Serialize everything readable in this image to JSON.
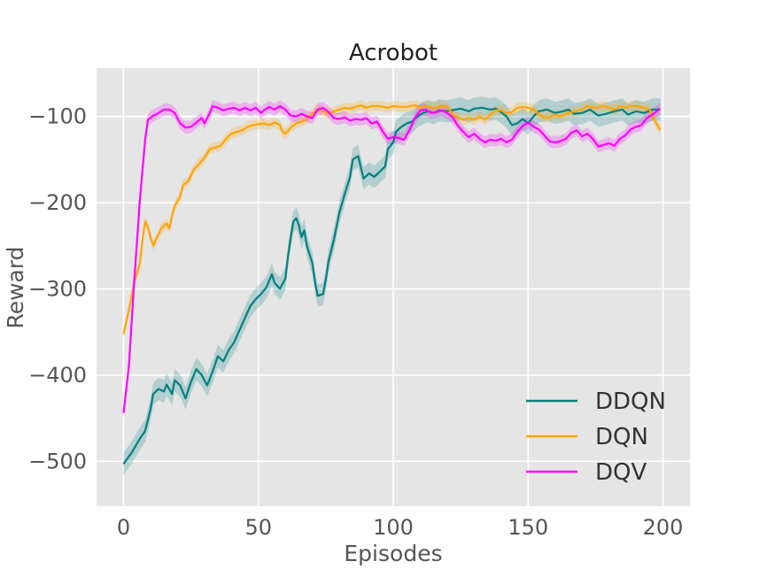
{
  "chart_data": {
    "type": "line",
    "title": "Acrobot",
    "xlabel": "Episodes",
    "ylabel": "Reward",
    "xlim": [
      -10,
      210
    ],
    "ylim": [
      -552,
      -44
    ],
    "xticks": [
      0,
      50,
      100,
      150,
      200
    ],
    "xtick_labels": [
      "0",
      "50",
      "100",
      "150",
      "200"
    ],
    "yticks": [
      -500,
      -400,
      -300,
      -200,
      -100
    ],
    "ytick_labels": [
      "−500",
      "−400",
      "−300",
      "−200",
      "−100"
    ],
    "grid": true,
    "legend_position": "bottom-right",
    "series": [
      {
        "name": "DDQN",
        "color": "#008080",
        "band": 13,
        "points": [
          [
            0,
            -503
          ],
          [
            3,
            -490
          ],
          [
            6,
            -474
          ],
          [
            8,
            -465
          ],
          [
            10,
            -440
          ],
          [
            11,
            -422
          ],
          [
            13,
            -416
          ],
          [
            15,
            -419
          ],
          [
            16,
            -411
          ],
          [
            18,
            -422
          ],
          [
            19,
            -406
          ],
          [
            21,
            -412
          ],
          [
            23,
            -427
          ],
          [
            25,
            -408
          ],
          [
            27,
            -393
          ],
          [
            29,
            -400
          ],
          [
            31,
            -412
          ],
          [
            33,
            -396
          ],
          [
            35,
            -378
          ],
          [
            37,
            -384
          ],
          [
            39,
            -371
          ],
          [
            41,
            -362
          ],
          [
            43,
            -348
          ],
          [
            45,
            -334
          ],
          [
            47,
            -320
          ],
          [
            49,
            -312
          ],
          [
            51,
            -306
          ],
          [
            53,
            -298
          ],
          [
            55,
            -283
          ],
          [
            56,
            -293
          ],
          [
            58,
            -300
          ],
          [
            60,
            -288
          ],
          [
            61,
            -262
          ],
          [
            62,
            -240
          ],
          [
            63,
            -222
          ],
          [
            64,
            -218
          ],
          [
            65,
            -226
          ],
          [
            66,
            -240
          ],
          [
            67,
            -232
          ],
          [
            68,
            -250
          ],
          [
            70,
            -270
          ],
          [
            71,
            -292
          ],
          [
            72,
            -308
          ],
          [
            74,
            -306
          ],
          [
            75,
            -289
          ],
          [
            76,
            -268
          ],
          [
            78,
            -243
          ],
          [
            80,
            -212
          ],
          [
            82,
            -190
          ],
          [
            84,
            -170
          ],
          [
            85,
            -150
          ],
          [
            87,
            -146
          ],
          [
            89,
            -172
          ],
          [
            91,
            -166
          ],
          [
            93,
            -170
          ],
          [
            95,
            -164
          ],
          [
            97,
            -158
          ],
          [
            98,
            -138
          ],
          [
            100,
            -130
          ],
          [
            101,
            -118
          ],
          [
            103,
            -112
          ],
          [
            105,
            -108
          ],
          [
            107,
            -106
          ],
          [
            109,
            -100
          ],
          [
            111,
            -96
          ],
          [
            113,
            -94
          ],
          [
            115,
            -96
          ],
          [
            117,
            -93
          ],
          [
            120,
            -94
          ],
          [
            123,
            -92
          ],
          [
            125,
            -91
          ],
          [
            128,
            -94
          ],
          [
            130,
            -91
          ],
          [
            133,
            -90
          ],
          [
            136,
            -92
          ],
          [
            138,
            -91
          ],
          [
            140,
            -95
          ],
          [
            142,
            -100
          ],
          [
            144,
            -110
          ],
          [
            146,
            -108
          ],
          [
            148,
            -103
          ],
          [
            150,
            -108
          ],
          [
            152,
            -100
          ],
          [
            154,
            -94
          ],
          [
            157,
            -92
          ],
          [
            160,
            -96
          ],
          [
            163,
            -94
          ],
          [
            165,
            -92
          ],
          [
            167,
            -97
          ],
          [
            170,
            -96
          ],
          [
            173,
            -92
          ],
          [
            176,
            -99
          ],
          [
            179,
            -97
          ],
          [
            182,
            -94
          ],
          [
            185,
            -92
          ],
          [
            187,
            -98
          ],
          [
            190,
            -94
          ],
          [
            193,
            -96
          ],
          [
            196,
            -92
          ],
          [
            199,
            -92
          ]
        ]
      },
      {
        "name": "DQN",
        "color": "#FFA500",
        "band": 6,
        "points": [
          [
            0,
            -352
          ],
          [
            2,
            -325
          ],
          [
            4,
            -292
          ],
          [
            6,
            -272
          ],
          [
            7,
            -245
          ],
          [
            8,
            -222
          ],
          [
            9,
            -228
          ],
          [
            10,
            -240
          ],
          [
            11,
            -250
          ],
          [
            12,
            -243
          ],
          [
            14,
            -230
          ],
          [
            16,
            -224
          ],
          [
            17,
            -230
          ],
          [
            18,
            -215
          ],
          [
            19,
            -204
          ],
          [
            21,
            -193
          ],
          [
            22,
            -180
          ],
          [
            24,
            -175
          ],
          [
            26,
            -162
          ],
          [
            28,
            -155
          ],
          [
            30,
            -148
          ],
          [
            32,
            -138
          ],
          [
            34,
            -136
          ],
          [
            36,
            -134
          ],
          [
            38,
            -126
          ],
          [
            40,
            -120
          ],
          [
            42,
            -118
          ],
          [
            44,
            -116
          ],
          [
            46,
            -112
          ],
          [
            48,
            -110
          ],
          [
            50,
            -109
          ],
          [
            52,
            -108
          ],
          [
            54,
            -110
          ],
          [
            56,
            -107
          ],
          [
            58,
            -110
          ],
          [
            59,
            -118
          ],
          [
            60,
            -120
          ],
          [
            62,
            -113
          ],
          [
            64,
            -108
          ],
          [
            66,
            -106
          ],
          [
            68,
            -103
          ],
          [
            70,
            -97
          ],
          [
            72,
            -92
          ],
          [
            74,
            -94
          ],
          [
            76,
            -97
          ],
          [
            78,
            -94
          ],
          [
            80,
            -92
          ],
          [
            82,
            -90
          ],
          [
            84,
            -91
          ],
          [
            86,
            -89
          ],
          [
            88,
            -87
          ],
          [
            90,
            -90
          ],
          [
            92,
            -88
          ],
          [
            95,
            -88
          ],
          [
            98,
            -90
          ],
          [
            100,
            -88
          ],
          [
            103,
            -89
          ],
          [
            105,
            -89
          ],
          [
            108,
            -87
          ],
          [
            110,
            -90
          ],
          [
            112,
            -88
          ],
          [
            115,
            -90
          ],
          [
            118,
            -89
          ],
          [
            120,
            -88
          ],
          [
            122,
            -98
          ],
          [
            124,
            -101
          ],
          [
            126,
            -104
          ],
          [
            128,
            -102
          ],
          [
            130,
            -104
          ],
          [
            132,
            -100
          ],
          [
            134,
            -104
          ],
          [
            136,
            -98
          ],
          [
            138,
            -93
          ],
          [
            140,
            -93
          ],
          [
            142,
            -96
          ],
          [
            144,
            -95
          ],
          [
            146,
            -90
          ],
          [
            148,
            -89
          ],
          [
            150,
            -90
          ],
          [
            152,
            -92
          ],
          [
            154,
            -98
          ],
          [
            156,
            -101
          ],
          [
            158,
            -101
          ],
          [
            160,
            -98
          ],
          [
            162,
            -100
          ],
          [
            164,
            -97
          ],
          [
            166,
            -95
          ],
          [
            168,
            -94
          ],
          [
            170,
            -92
          ],
          [
            172,
            -88
          ],
          [
            175,
            -90
          ],
          [
            178,
            -88
          ],
          [
            180,
            -90
          ],
          [
            182,
            -92
          ],
          [
            184,
            -88
          ],
          [
            186,
            -90
          ],
          [
            188,
            -88
          ],
          [
            190,
            -88
          ],
          [
            193,
            -90
          ],
          [
            195,
            -92
          ],
          [
            197,
            -105
          ],
          [
            199,
            -116
          ]
        ]
      },
      {
        "name": "DQV",
        "color": "#FF00FF",
        "band": 7,
        "points": [
          [
            0,
            -444
          ],
          [
            2,
            -390
          ],
          [
            4,
            -290
          ],
          [
            6,
            -200
          ],
          [
            8,
            -128
          ],
          [
            9,
            -104
          ],
          [
            11,
            -99
          ],
          [
            13,
            -96
          ],
          [
            15,
            -92
          ],
          [
            17,
            -92
          ],
          [
            19,
            -96
          ],
          [
            21,
            -108
          ],
          [
            23,
            -113
          ],
          [
            25,
            -112
          ],
          [
            27,
            -107
          ],
          [
            29,
            -102
          ],
          [
            30,
            -108
          ],
          [
            32,
            -96
          ],
          [
            33,
            -88
          ],
          [
            35,
            -90
          ],
          [
            37,
            -93
          ],
          [
            39,
            -91
          ],
          [
            41,
            -90
          ],
          [
            43,
            -93
          ],
          [
            45,
            -90
          ],
          [
            47,
            -93
          ],
          [
            49,
            -90
          ],
          [
            51,
            -96
          ],
          [
            52,
            -93
          ],
          [
            54,
            -89
          ],
          [
            56,
            -92
          ],
          [
            58,
            -88
          ],
          [
            60,
            -92
          ],
          [
            62,
            -99
          ],
          [
            64,
            -100
          ],
          [
            66,
            -97
          ],
          [
            68,
            -100
          ],
          [
            70,
            -102
          ],
          [
            72,
            -92
          ],
          [
            74,
            -90
          ],
          [
            76,
            -95
          ],
          [
            78,
            -102
          ],
          [
            80,
            -103
          ],
          [
            82,
            -101
          ],
          [
            84,
            -105
          ],
          [
            86,
            -103
          ],
          [
            88,
            -104
          ],
          [
            90,
            -102
          ],
          [
            92,
            -108
          ],
          [
            94,
            -106
          ],
          [
            96,
            -117
          ],
          [
            98,
            -126
          ],
          [
            100,
            -124
          ],
          [
            102,
            -125
          ],
          [
            104,
            -127
          ],
          [
            106,
            -116
          ],
          [
            108,
            -102
          ],
          [
            110,
            -93
          ],
          [
            112,
            -92
          ],
          [
            114,
            -96
          ],
          [
            116,
            -95
          ],
          [
            118,
            -93
          ],
          [
            120,
            -96
          ],
          [
            122,
            -101
          ],
          [
            124,
            -111
          ],
          [
            126,
            -118
          ],
          [
            128,
            -124
          ],
          [
            130,
            -120
          ],
          [
            132,
            -126
          ],
          [
            134,
            -130
          ],
          [
            136,
            -127
          ],
          [
            138,
            -128
          ],
          [
            140,
            -126
          ],
          [
            142,
            -130
          ],
          [
            144,
            -127
          ],
          [
            146,
            -118
          ],
          [
            148,
            -111
          ],
          [
            150,
            -107
          ],
          [
            152,
            -112
          ],
          [
            154,
            -115
          ],
          [
            156,
            -122
          ],
          [
            158,
            -129
          ],
          [
            160,
            -130
          ],
          [
            162,
            -129
          ],
          [
            164,
            -126
          ],
          [
            166,
            -119
          ],
          [
            168,
            -116
          ],
          [
            170,
            -123
          ],
          [
            172,
            -120
          ],
          [
            174,
            -126
          ],
          [
            176,
            -135
          ],
          [
            178,
            -133
          ],
          [
            180,
            -131
          ],
          [
            182,
            -134
          ],
          [
            184,
            -126
          ],
          [
            186,
            -122
          ],
          [
            188,
            -115
          ],
          [
            190,
            -112
          ],
          [
            192,
            -110
          ],
          [
            194,
            -102
          ],
          [
            196,
            -98
          ],
          [
            199,
            -91
          ]
        ]
      }
    ]
  }
}
